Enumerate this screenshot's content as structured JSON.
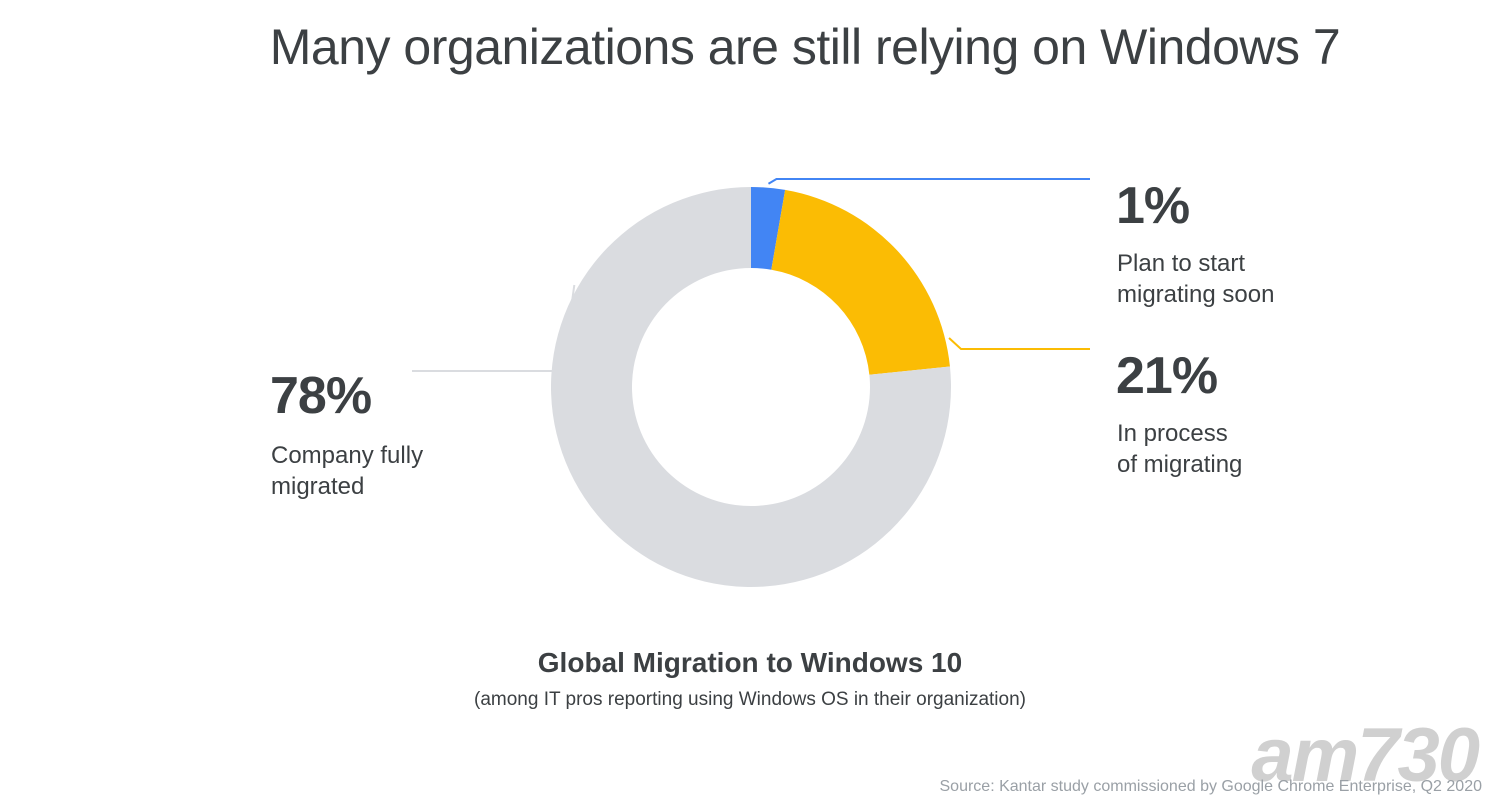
{
  "title": "Many organizations are still relying on Windows 7",
  "chart_data": {
    "type": "pie",
    "title": "Global Migration to Windows 10",
    "subtitle": "(among IT pros reporting using Windows OS in their organization)",
    "source": "Source: Kantar study commissioned by Google Chrome Enterprise, Q2 2020",
    "slices": [
      {
        "label_lines": [
          "Plan to start",
          "migrating soon"
        ],
        "value": 1,
        "value_label": "1%",
        "color": "#4285f4"
      },
      {
        "label_lines": [
          "In process",
          "of migrating"
        ],
        "value": 21,
        "value_label": "21%",
        "color": "#fbbc04"
      },
      {
        "label_lines": [
          "Company fully",
          "migrated"
        ],
        "value": 78,
        "value_label": "78%",
        "color": "#dadce0"
      }
    ]
  },
  "watermark": "am730"
}
